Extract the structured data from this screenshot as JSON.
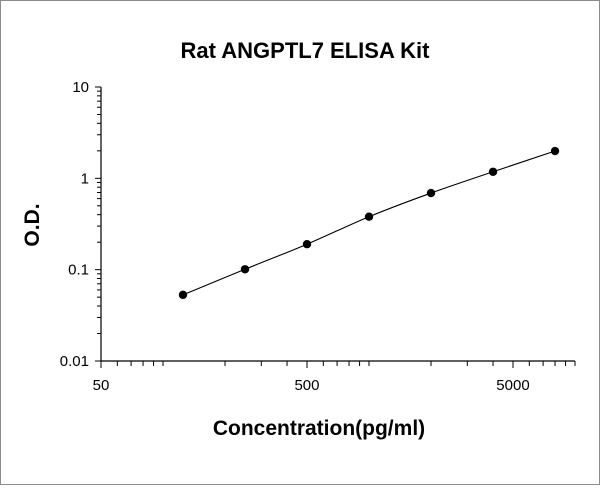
{
  "chart_data": {
    "type": "scatter",
    "title": "Rat ANGPTL7 ELISA Kit",
    "xlabel": "Concentration(pg/ml)",
    "ylabel": "O.D.",
    "xscale": "log",
    "yscale": "log",
    "xlim": [
      50,
      10000
    ],
    "ylim": [
      0.01,
      10
    ],
    "x_tick_labels": [
      "50",
      "500",
      "5000"
    ],
    "y_tick_labels": [
      "10",
      "1",
      "0.1",
      "0.01"
    ],
    "grid": false,
    "legend": "none",
    "trendline": true,
    "marker_color": "#000000",
    "line_color": "#000000",
    "series": [
      {
        "x": [
          125,
          250,
          500,
          1000,
          2000,
          4000,
          8000
        ],
        "y": [
          0.053,
          0.101,
          0.19,
          0.38,
          0.69,
          1.18,
          1.99
        ]
      }
    ]
  }
}
